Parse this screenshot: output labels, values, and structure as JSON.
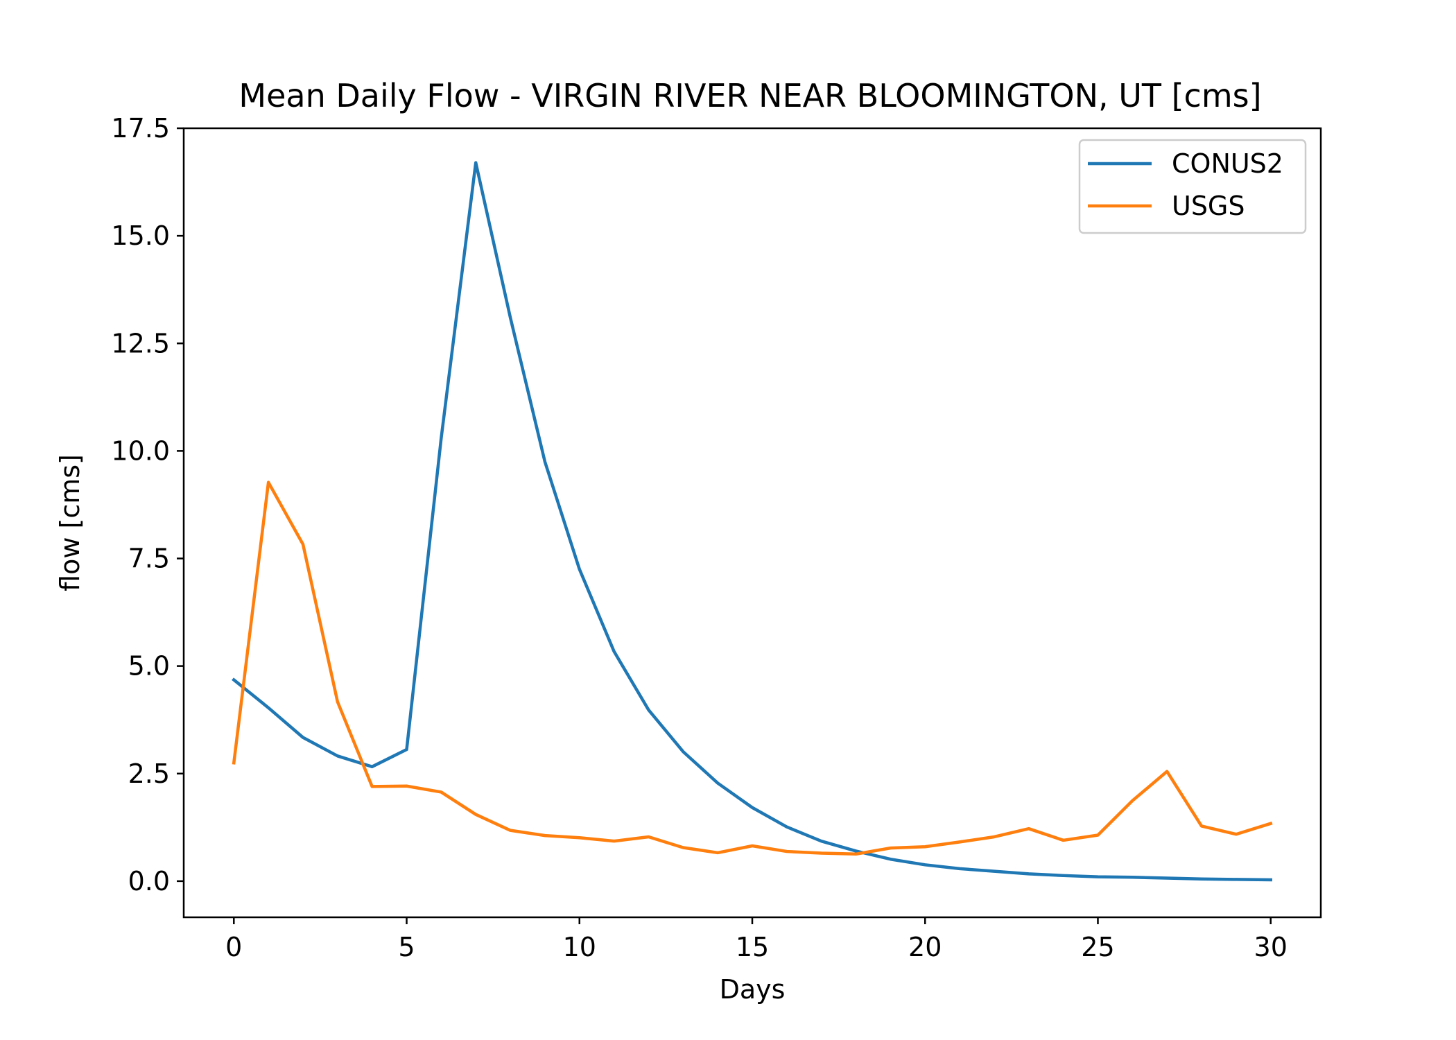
{
  "chart_data": {
    "type": "line",
    "title": "Mean Daily Flow - VIRGIN RIVER NEAR BLOOMINGTON, UT [cms]",
    "xlabel": "Days",
    "ylabel": "flow [cms]",
    "xlim": [
      -1.45,
      31.45
    ],
    "ylim": [
      -0.84,
      17.5
    ],
    "xticks": [
      0,
      5,
      10,
      15,
      20,
      25,
      30
    ],
    "xtick_labels": [
      "0",
      "5",
      "10",
      "15",
      "20",
      "25",
      "30"
    ],
    "yticks": [
      0,
      2.5,
      5,
      7.5,
      10,
      12.5,
      15,
      17.5
    ],
    "ytick_labels": [
      "0.0",
      "2.5",
      "5.0",
      "7.5",
      "10.0",
      "12.5",
      "15.0",
      "17.5"
    ],
    "grid": false,
    "legend_position": "top-right",
    "x": [
      0,
      1,
      2,
      3,
      4,
      5,
      6,
      7,
      8,
      9,
      10,
      11,
      12,
      13,
      14,
      15,
      16,
      17,
      18,
      19,
      20,
      21,
      22,
      23,
      24,
      25,
      26,
      27,
      28,
      29,
      30
    ],
    "series": [
      {
        "name": "CONUS2",
        "color": "#1f77b4",
        "values": [
          4.68,
          4.03,
          3.34,
          2.91,
          2.66,
          3.06,
          10.3,
          16.7,
          13.1,
          9.75,
          7.25,
          5.34,
          3.98,
          3.01,
          2.28,
          1.71,
          1.26,
          0.93,
          0.7,
          0.51,
          0.38,
          0.29,
          0.23,
          0.17,
          0.13,
          0.1,
          0.09,
          0.07,
          0.05,
          0.04,
          0.03
        ]
      },
      {
        "name": "USGS",
        "color": "#ff7f0e",
        "values": [
          2.75,
          9.27,
          7.83,
          4.17,
          2.2,
          2.21,
          2.07,
          1.55,
          1.18,
          1.06,
          1.01,
          0.93,
          1.03,
          0.78,
          0.66,
          0.82,
          0.69,
          0.65,
          0.63,
          0.77,
          0.8,
          0.91,
          1.03,
          1.22,
          0.95,
          1.07,
          1.87,
          2.55,
          1.28,
          1.09,
          1.34
        ]
      }
    ]
  }
}
